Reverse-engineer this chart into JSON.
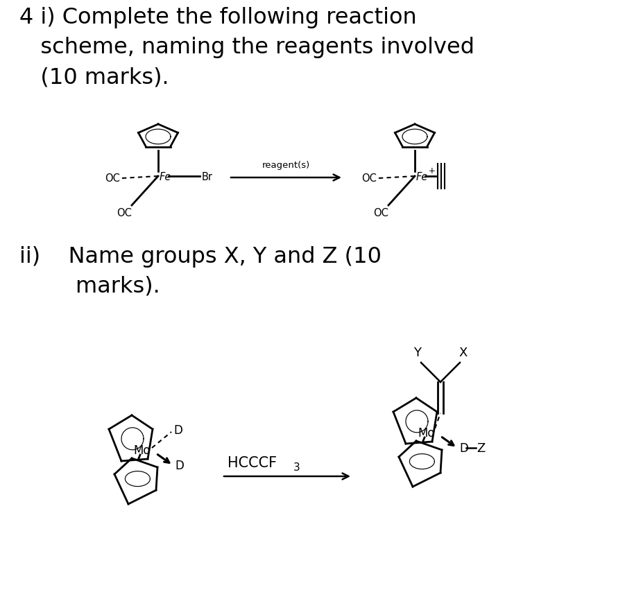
{
  "title_line1": "4 i) Complete the following reaction",
  "title_line2": "   scheme, naming the reagents involved",
  "title_line3": "   (10 marks).",
  "subtitle_line1": "ii)    Name groups X, Y and Z (10",
  "subtitle_line2": "        marks).",
  "reagent_label": "reagent(s)",
  "hcccf_label": "HCCCF",
  "hcccf_sub": "3",
  "background_color": "#ffffff",
  "text_color": "#000000",
  "title_fontsize": 23,
  "small_fontsize": 9.5,
  "label_fontsize": 11,
  "mol_label_fontsize": 12
}
